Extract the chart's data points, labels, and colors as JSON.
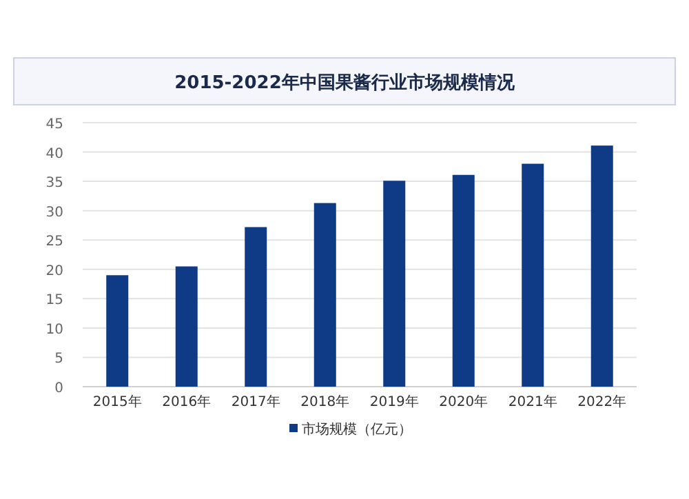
{
  "chart_data": {
    "type": "bar",
    "title": "2015-2022年中国果酱行业市场规模情况",
    "categories": [
      "2015年",
      "2016年",
      "2017年",
      "2018年",
      "2019年",
      "2020年",
      "2021年",
      "2022年"
    ],
    "series": [
      {
        "name": "市场规模（亿元）",
        "color": "#0e3a86",
        "values": [
          19.0,
          20.5,
          27.2,
          31.3,
          35.1,
          36.1,
          38.0,
          41.1
        ]
      }
    ],
    "ylim": [
      0,
      45
    ],
    "yticks": [
      0,
      5,
      10,
      15,
      20,
      25,
      30,
      35,
      40,
      45
    ],
    "grid": "y",
    "legend": "bottom"
  }
}
